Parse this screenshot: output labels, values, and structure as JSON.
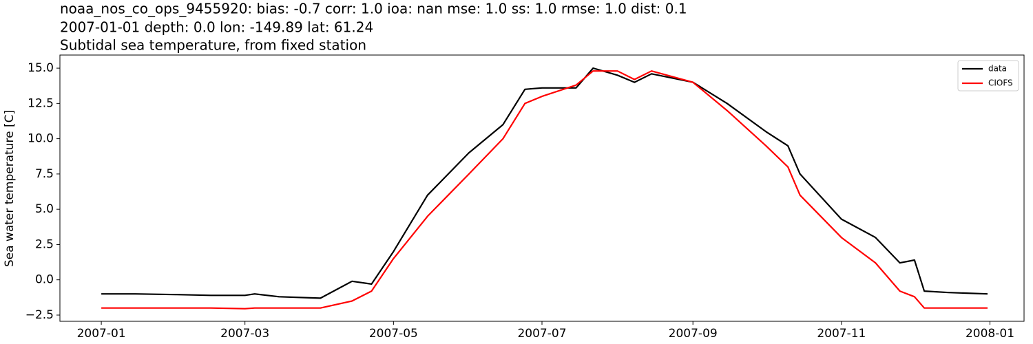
{
  "chart_data": {
    "type": "line",
    "title": [
      "noaa_nos_co_ops_9455920: bias: -0.7  corr: 1.0  ioa: nan  mse: 1.0  ss: 1.0  rmse: 1.0  dist: 0.1",
      "2007-01-01 depth: 0.0 lon: -149.89 lat: 61.24",
      "Subtidal sea temperature, from fixed station"
    ],
    "ylabel": "Sea water temperature [C]",
    "x": [
      "2007-01-01",
      "2007-01-15",
      "2007-02-01",
      "2007-02-15",
      "2007-03-01",
      "2007-03-05",
      "2007-03-15",
      "2007-04-01",
      "2007-04-14",
      "2007-04-22",
      "2007-05-01",
      "2007-05-15",
      "2007-06-01",
      "2007-06-15",
      "2007-06-24",
      "2007-07-01",
      "2007-07-15",
      "2007-07-22",
      "2007-08-01",
      "2007-08-08",
      "2007-08-15",
      "2007-09-01",
      "2007-09-15",
      "2007-10-01",
      "2007-10-10",
      "2007-10-15",
      "2007-11-01",
      "2007-11-15",
      "2007-11-25",
      "2007-12-01",
      "2007-12-05",
      "2007-12-15",
      "2007-12-31"
    ],
    "series": [
      {
        "name": "data",
        "color": "#000000",
        "values": [
          -1.0,
          -1.0,
          -1.05,
          -1.1,
          -1.1,
          -1.0,
          -1.2,
          -1.3,
          -0.1,
          -0.3,
          2.0,
          6.0,
          9.0,
          11.0,
          13.5,
          13.6,
          13.6,
          15.0,
          14.5,
          14.0,
          14.6,
          14.0,
          12.5,
          10.5,
          9.5,
          7.5,
          4.3,
          3.0,
          1.2,
          1.4,
          -0.8,
          -0.9,
          -1.0
        ]
      },
      {
        "name": "CIOFS",
        "color": "#ff0000",
        "values": [
          -2.0,
          -2.0,
          -2.0,
          -2.0,
          -2.05,
          -2.0,
          -2.0,
          -2.0,
          -1.5,
          -0.8,
          1.5,
          4.5,
          7.5,
          10.0,
          12.5,
          13.0,
          13.8,
          14.8,
          14.8,
          14.2,
          14.8,
          14.0,
          12.0,
          9.5,
          8.0,
          6.0,
          3.0,
          1.2,
          -0.8,
          -1.2,
          -2.0,
          -2.0,
          -2.0
        ]
      }
    ],
    "xlim": [
      "2006-12-15",
      "2008-01-15"
    ],
    "xticks": [
      {
        "value": "2007-01-01",
        "label": "2007-01"
      },
      {
        "value": "2007-03-01",
        "label": "2007-03"
      },
      {
        "value": "2007-05-01",
        "label": "2007-05"
      },
      {
        "value": "2007-07-01",
        "label": "2007-07"
      },
      {
        "value": "2007-09-01",
        "label": "2007-09"
      },
      {
        "value": "2007-11-01",
        "label": "2007-11"
      },
      {
        "value": "2008-01-01",
        "label": "2008-01"
      }
    ],
    "ylim": [
      -2.94,
      15.93
    ],
    "yticks": [
      {
        "value": -2.5,
        "label": "−2.5"
      },
      {
        "value": 0,
        "label": "0.0"
      },
      {
        "value": 2.5,
        "label": "2.5"
      },
      {
        "value": 5,
        "label": "5.0"
      },
      {
        "value": 7.5,
        "label": "7.5"
      },
      {
        "value": 10,
        "label": "10.0"
      },
      {
        "value": 12.5,
        "label": "12.5"
      },
      {
        "value": 15,
        "label": "15.0"
      }
    ],
    "legend": "upper right"
  }
}
